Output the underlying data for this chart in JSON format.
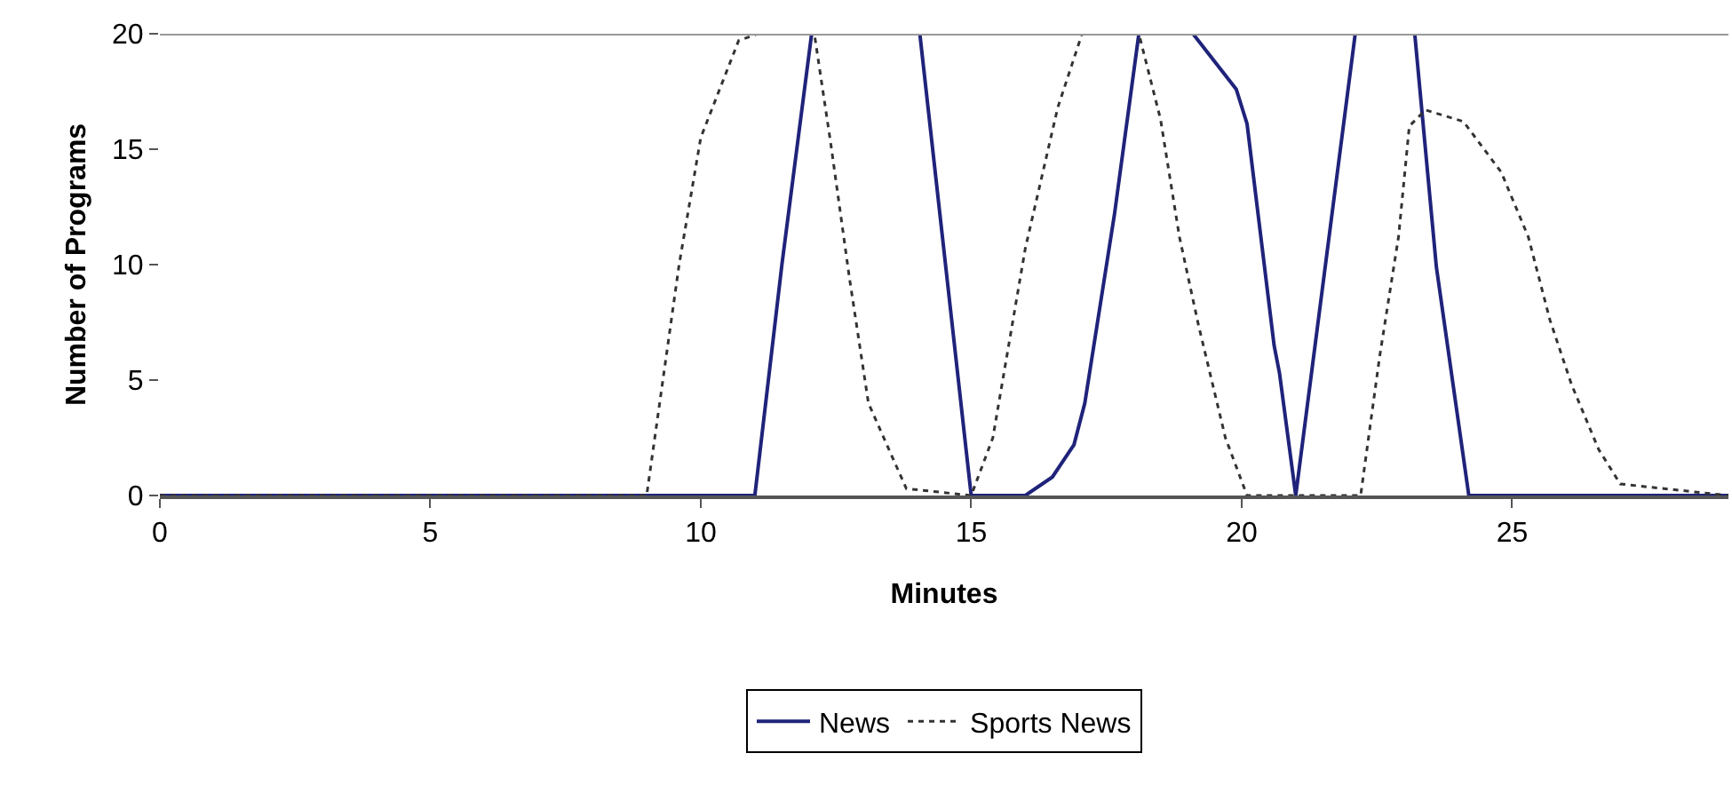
{
  "chart_data": {
    "type": "line",
    "xlabel": "Minutes",
    "ylabel": "Number of Programs",
    "xlim": [
      0,
      29
    ],
    "ylim": [
      0,
      20
    ],
    "xticks": [
      0,
      5,
      10,
      15,
      20,
      25
    ],
    "yticks": [
      0,
      5,
      10,
      15,
      20
    ],
    "grid": false,
    "legend": "bottom",
    "marker": "none",
    "series": [
      {
        "name": "News",
        "color": "#1f237a",
        "line_style": "solid",
        "x": [
          0,
          11,
          11.5,
          12.05,
          14.05,
          15,
          16,
          16.5,
          16.9,
          17.1,
          17.65,
          18.1,
          19.1,
          19.9,
          20.1,
          20.6,
          20.7,
          21,
          22.1,
          23.2,
          23.6,
          24.2,
          29
        ],
        "values": [
          0,
          0,
          10,
          20,
          20,
          0,
          0,
          0.8,
          2.2,
          4,
          12.2,
          20,
          20,
          17.6,
          16.1,
          6.5,
          5.3,
          0,
          20,
          20,
          9.9,
          0,
          0
        ]
      },
      {
        "name": "Sports News",
        "color": "#333333",
        "line_style": "dotted",
        "x": [
          0,
          9,
          9.6,
          10,
          10.7,
          11.05,
          12.1,
          12.4,
          12.75,
          13.1,
          13.8,
          15,
          15.4,
          16,
          16.6,
          17.05,
          18.1,
          18.5,
          18.85,
          19.2,
          19.7,
          20.1,
          22.2,
          22.55,
          22.9,
          23.1,
          23.4,
          24.1,
          24.8,
          25.3,
          25.7,
          26.1,
          26.6,
          27,
          29
        ],
        "values": [
          0,
          0,
          10,
          15.5,
          19.7,
          20,
          20,
          15.3,
          9.4,
          4,
          0.3,
          0,
          2.5,
          10.7,
          16.8,
          20,
          20,
          16.3,
          11.2,
          7.4,
          2.5,
          0,
          0,
          6,
          11.2,
          16,
          16.7,
          16.2,
          14,
          11.2,
          7.6,
          4.8,
          2,
          0.5,
          0
        ]
      }
    ]
  }
}
